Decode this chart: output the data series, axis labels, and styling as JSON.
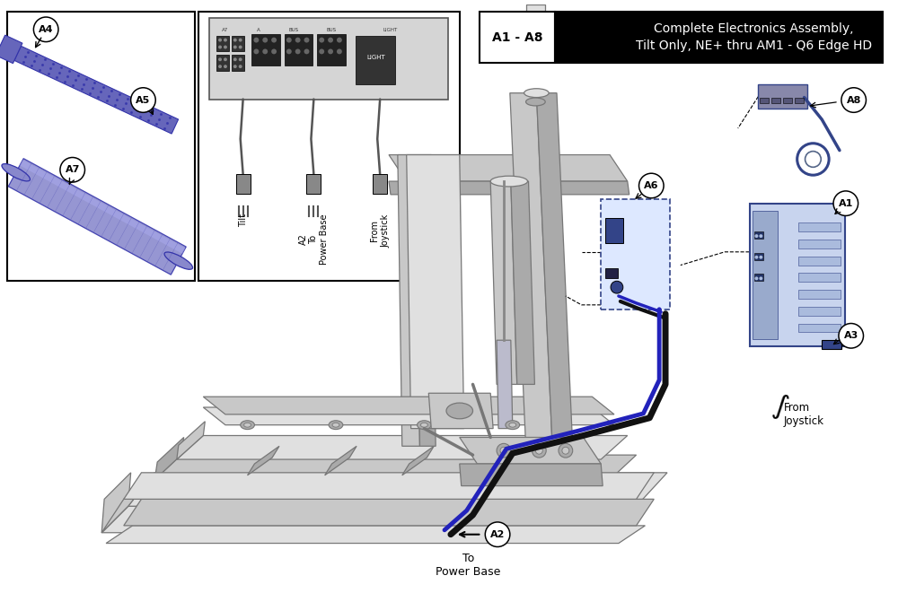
{
  "bg_color": "#ffffff",
  "title_label": "A1 - A8",
  "title_main": "Complete Electronics Assembly,\nTilt Only, NE+ thru AM1 - Q6 Edge HD",
  "annotation_from_joystick": "From\nJoystick",
  "annotation_to_powerbase": "To\nPower Base",
  "velcro_color": "#6666bb",
  "velcro_dark": "#3333aa",
  "cable_black": "#111111",
  "cable_blue": "#2222bb",
  "frame_light": "#e0e0e0",
  "frame_mid": "#c8c8c8",
  "frame_dark": "#aaaaaa",
  "frame_edge": "#777777",
  "blue_comp": "#3344aa",
  "blue_comp_face": "#c8d4f0",
  "callout_r": 14
}
